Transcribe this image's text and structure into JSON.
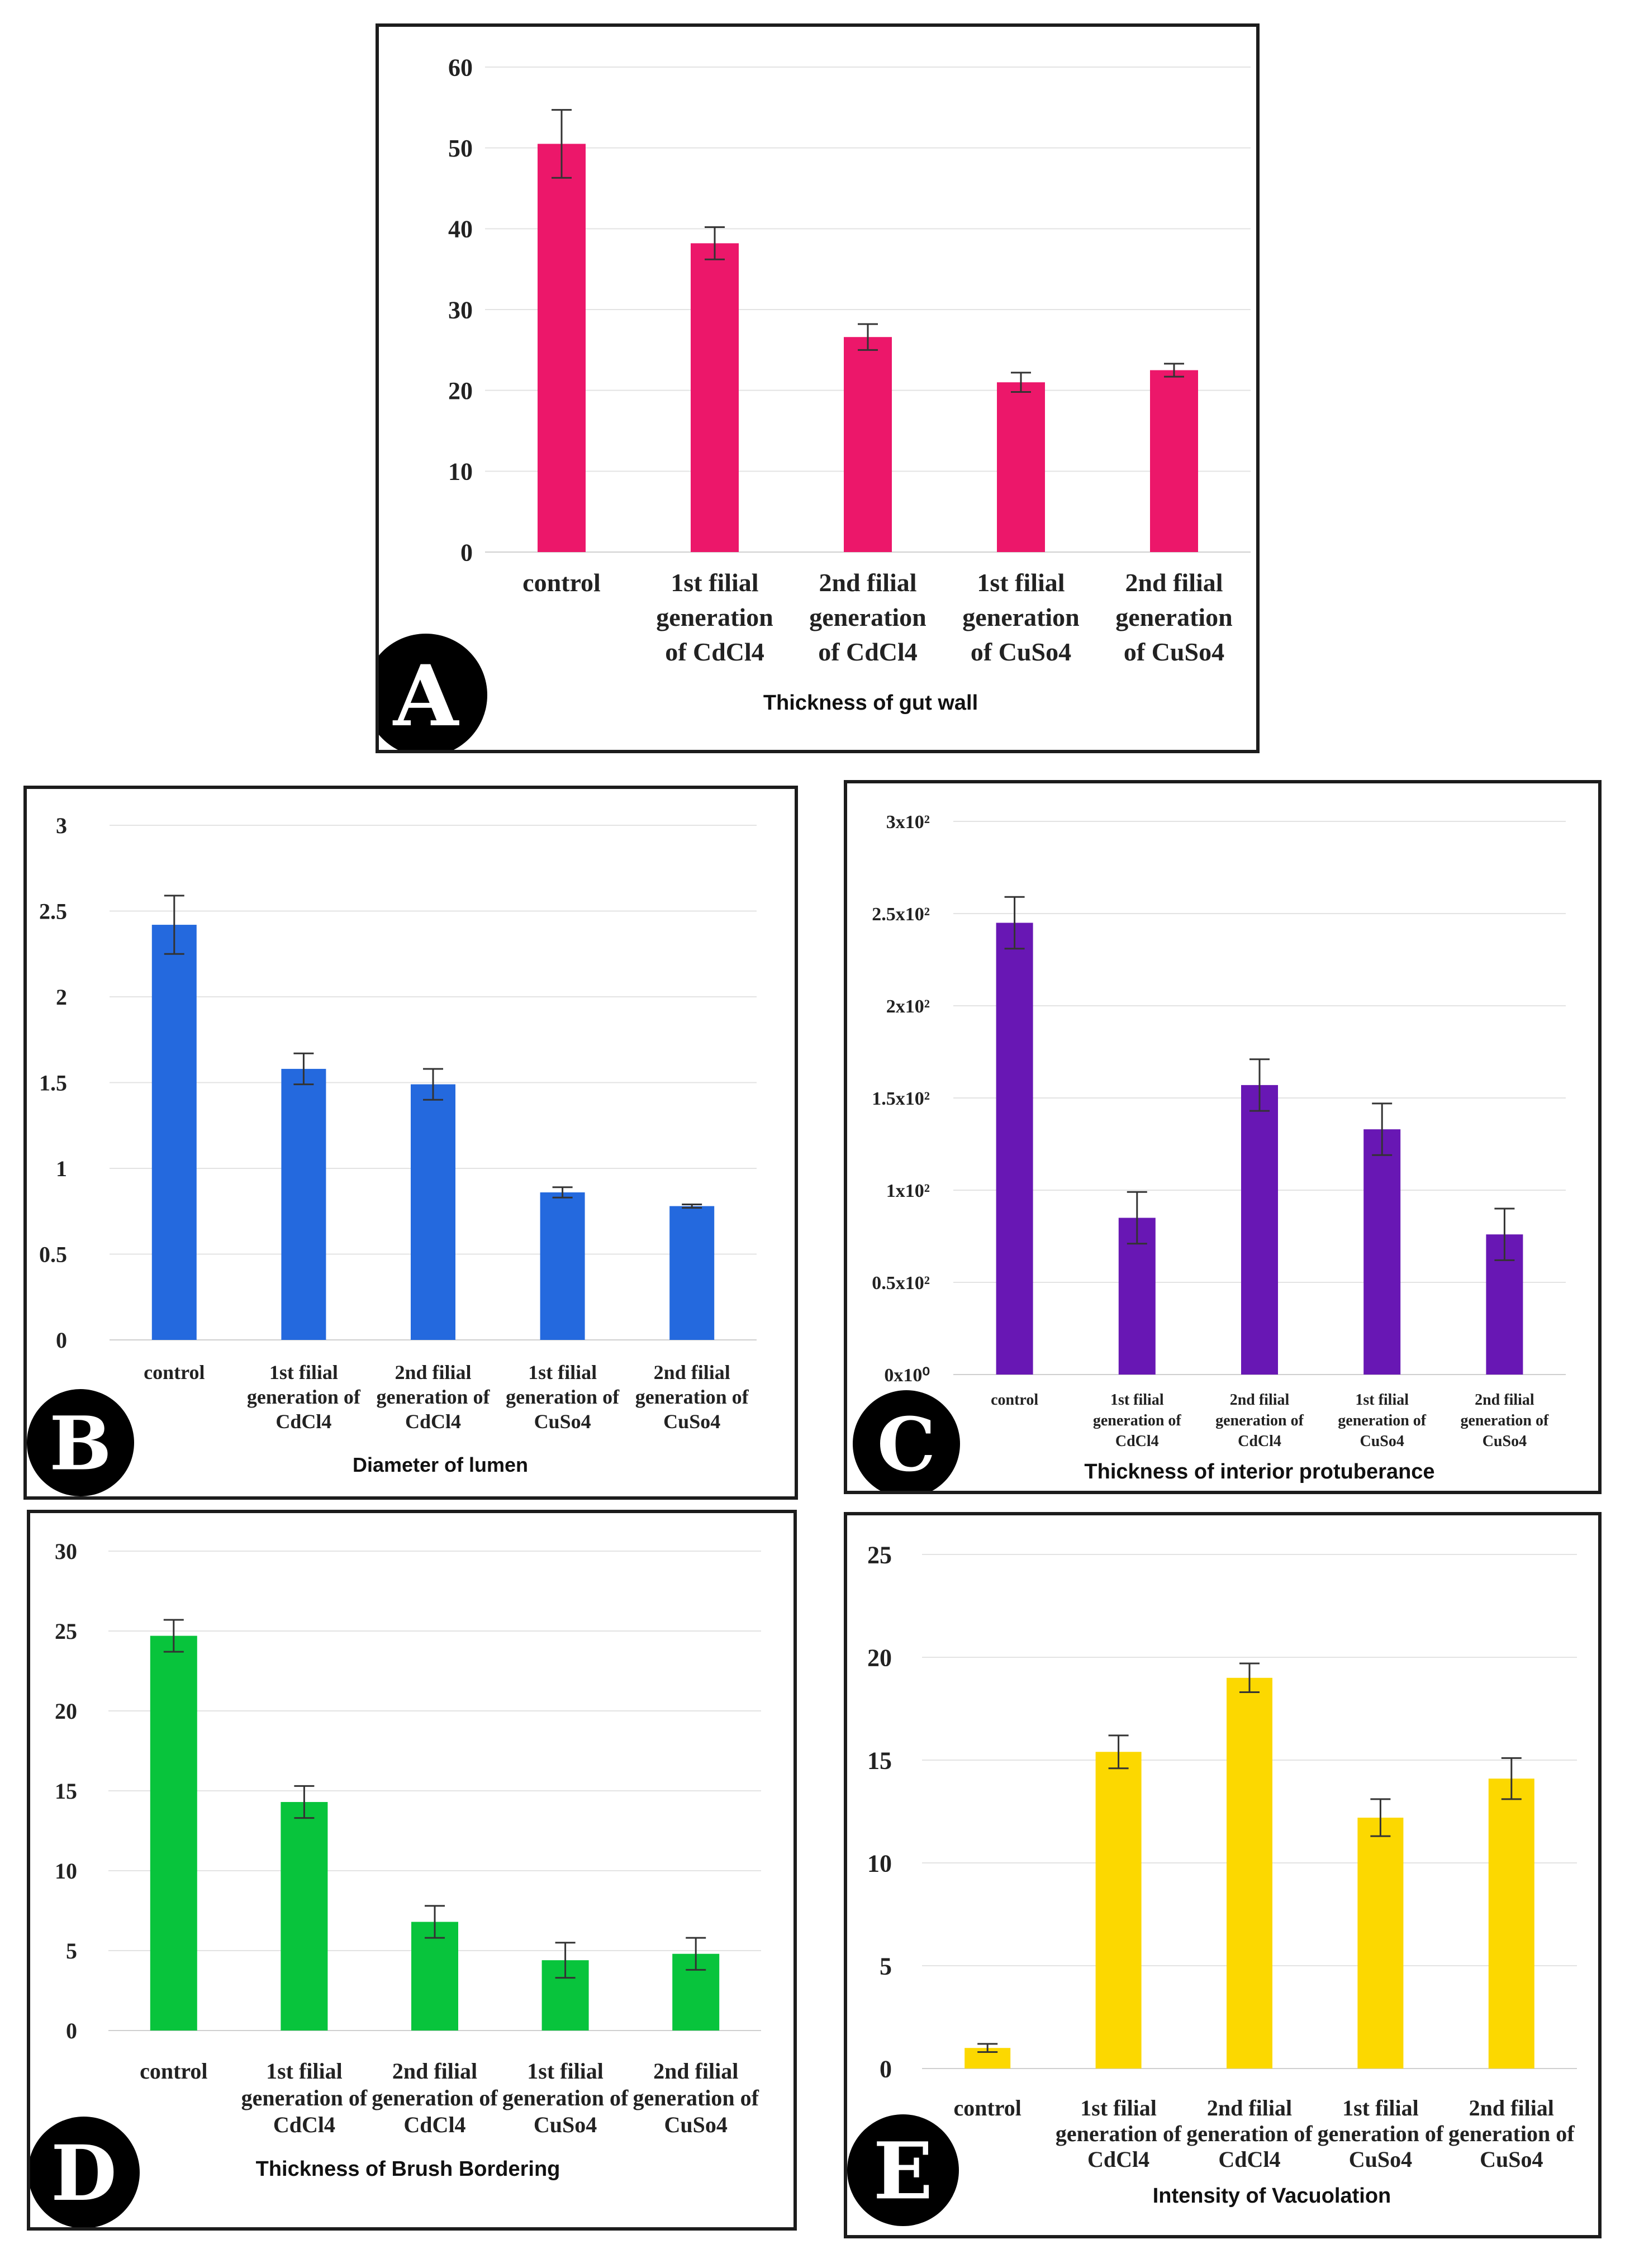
{
  "figure_colors": {
    "A": "#ec176a",
    "B": "#2469de",
    "C": "#6817b4",
    "D": "#08c43c",
    "E": "#fcd800"
  },
  "chart_data": [
    {
      "type": "bar",
      "panel_label": "A",
      "title": "Thickness of gut wall",
      "categories": [
        [
          "control"
        ],
        [
          "1st filial",
          "generation",
          "of CdCl4"
        ],
        [
          "2nd filial",
          "generation",
          "of CdCl4"
        ],
        [
          "1st filial",
          "generation",
          "of CuSo4"
        ],
        [
          "2nd filial",
          "generation",
          "of CuSo4"
        ]
      ],
      "values": [
        50.5,
        38.2,
        26.6,
        21.0,
        22.5
      ],
      "errors": [
        4.2,
        2.0,
        1.6,
        1.2,
        0.8
      ],
      "yticks": [
        "0",
        "10",
        "20",
        "30",
        "40",
        "50",
        "60"
      ],
      "ylim": [
        0,
        60
      ]
    },
    {
      "type": "bar",
      "panel_label": "B",
      "title": "Diameter of lumen",
      "categories": [
        [
          "control"
        ],
        [
          "1st filial",
          "generation of",
          "CdCl4"
        ],
        [
          "2nd filial",
          "generation of",
          "CdCl4"
        ],
        [
          "1st filial",
          "generation of",
          "CuSo4"
        ],
        [
          "2nd filial",
          "generation of",
          "CuSo4"
        ]
      ],
      "values": [
        2.42,
        1.58,
        1.49,
        0.86,
        0.78
      ],
      "errors": [
        0.17,
        0.09,
        0.09,
        0.03,
        0.01
      ],
      "yticks": [
        "0",
        "0.5",
        "1",
        "1.5",
        "2",
        "2.5",
        "3"
      ],
      "ylim": [
        0,
        3
      ]
    },
    {
      "type": "bar",
      "panel_label": "C",
      "title": "Thickness of interior protuberance",
      "categories": [
        [
          "control"
        ],
        [
          "1st filial",
          "generation of",
          "CdCl4"
        ],
        [
          "2nd filial",
          "generation of",
          "CdCl4"
        ],
        [
          "1st filial",
          "generation of",
          "CuSo4"
        ],
        [
          "2nd filial",
          "generation of",
          "CuSo4"
        ]
      ],
      "values": [
        245,
        85,
        157,
        133,
        76
      ],
      "errors": [
        14,
        14,
        14,
        14,
        14
      ],
      "yticks": [
        "0x10⁰",
        "0.5x10²",
        "1x10²",
        "1.5x10²",
        "2x10²",
        "2.5x10²",
        "3x10²"
      ],
      "ylim": [
        0,
        300
      ]
    },
    {
      "type": "bar",
      "panel_label": "D",
      "title": "Thickness of Brush Bordering",
      "categories": [
        [
          "control"
        ],
        [
          "1st filial",
          "generation of",
          "CdCl4"
        ],
        [
          "2nd filial",
          "generation of",
          "CdCl4"
        ],
        [
          "1st filial",
          "generation of",
          "CuSo4"
        ],
        [
          "2nd filial",
          "generation of",
          "CuSo4"
        ]
      ],
      "values": [
        24.7,
        14.3,
        6.8,
        4.4,
        4.8
      ],
      "errors": [
        1.0,
        1.0,
        1.0,
        1.1,
        1.0
      ],
      "yticks": [
        "0",
        "5",
        "10",
        "15",
        "20",
        "25",
        "30"
      ],
      "ylim": [
        0,
        30
      ]
    },
    {
      "type": "bar",
      "panel_label": "E",
      "title": "Intensity of Vacuolation",
      "categories": [
        [
          "control"
        ],
        [
          "1st filial",
          "generation of",
          "CdCl4"
        ],
        [
          "2nd filial",
          "generation of",
          "CdCl4"
        ],
        [
          "1st filial",
          "generation of",
          "CuSo4"
        ],
        [
          "2nd filial",
          "generation of",
          "CuSo4"
        ]
      ],
      "values": [
        1.0,
        15.4,
        19.0,
        12.2,
        14.1
      ],
      "errors": [
        0.2,
        0.8,
        0.7,
        0.9,
        1.0
      ],
      "yticks": [
        "0",
        "5",
        "10",
        "15",
        "20",
        "25"
      ],
      "ylim": [
        0,
        25
      ]
    }
  ]
}
